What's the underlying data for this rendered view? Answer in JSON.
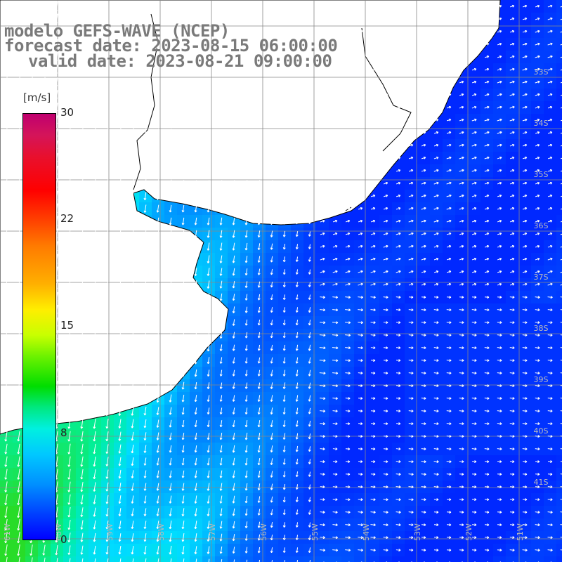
{
  "header": {
    "line1": "modelo GEFS-WAVE (NCEP)",
    "line2": "forecast date: 2023-08-15 06:00:00",
    "line3": "valid date: 2023-08-21 09:00:00"
  },
  "colorbar": {
    "unit": "[m/s]",
    "ticks": [
      "30",
      "22",
      "15",
      "8",
      "0"
    ],
    "colors": [
      "#c0006f",
      "#ff0000",
      "#ff7a00",
      "#ffee00",
      "#00dd00",
      "#00f0e0",
      "#0090ff",
      "#0000ff"
    ]
  },
  "map": {
    "lat_labels": [
      "33S",
      "34S",
      "35S",
      "36S",
      "37S",
      "38S",
      "39S",
      "40S",
      "41S"
    ],
    "lon_labels": [
      "61W",
      "60W",
      "59W",
      "58W",
      "57W",
      "56W",
      "55W",
      "54W",
      "53W",
      "52W",
      "51W"
    ],
    "land_color": "#ffffff",
    "grid_color": "#888888",
    "vector_color": "#ffffff"
  }
}
